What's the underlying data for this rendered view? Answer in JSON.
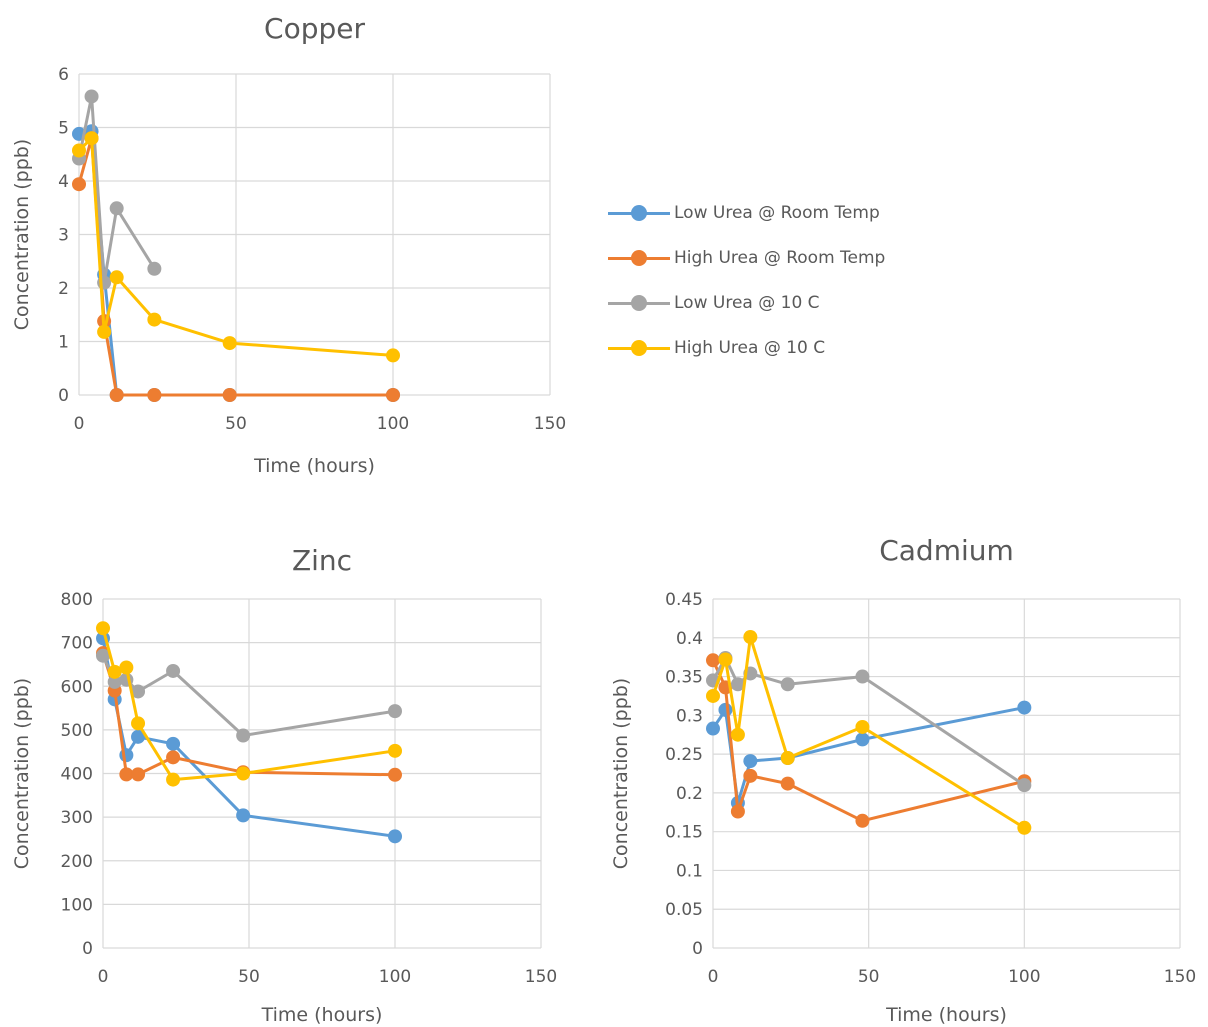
{
  "legend": {
    "series": [
      {
        "name": "Low Urea @ Room Temp",
        "color": "#5B9BD5"
      },
      {
        "name": "High Urea @ Room Temp",
        "color": "#ED7D31"
      },
      {
        "name": "Low Urea @ 10 C",
        "color": "#A5A5A5"
      },
      {
        "name": "High Urea @ 10 C",
        "color": "#FFC000"
      }
    ]
  },
  "chart_data": [
    {
      "type": "line",
      "title": "Copper",
      "xlabel": "Time (hours)",
      "ylabel": "Concentration (ppb)",
      "xlim": [
        0,
        150
      ],
      "ylim": [
        0,
        6
      ],
      "xticks": [
        0,
        50,
        100,
        150
      ],
      "yticks": [
        0,
        1,
        2,
        3,
        4,
        5,
        6
      ],
      "grid": true,
      "legend": "right",
      "series": [
        {
          "name": "Low Urea @ Room Temp",
          "color": "#5B9BD5",
          "x": [
            0,
            4,
            8,
            12,
            24,
            48,
            100
          ],
          "y": [
            4.88,
            4.93,
            2.25,
            0,
            0,
            0,
            0
          ]
        },
        {
          "name": "High Urea @ Room Temp",
          "color": "#ED7D31",
          "x": [
            0,
            4,
            8,
            12,
            24,
            48,
            100
          ],
          "y": [
            3.94,
            4.8,
            1.38,
            0,
            0,
            0,
            0
          ]
        },
        {
          "name": "Low Urea @ 10 C",
          "color": "#A5A5A5",
          "x": [
            0,
            4,
            8,
            12,
            24
          ],
          "y": [
            4.42,
            5.58,
            2.1,
            3.49,
            2.36
          ]
        },
        {
          "name": "High Urea @ 10 C",
          "color": "#FFC000",
          "x": [
            0,
            4,
            8,
            12,
            24,
            48,
            100
          ],
          "y": [
            4.57,
            4.8,
            1.18,
            2.2,
            1.41,
            0.97,
            0.74
          ]
        }
      ]
    },
    {
      "type": "line",
      "title": "Zinc",
      "xlabel": "Time (hours)",
      "ylabel": "Concentration (ppb)",
      "xlim": [
        0,
        150
      ],
      "ylim": [
        0,
        800
      ],
      "xticks": [
        0,
        50,
        100,
        150
      ],
      "yticks": [
        0,
        100,
        200,
        300,
        400,
        500,
        600,
        700,
        800
      ],
      "grid": true,
      "series": [
        {
          "name": "Low Urea @ Room Temp",
          "color": "#5B9BD5",
          "x": [
            0,
            4,
            8,
            12,
            24,
            48,
            100
          ],
          "y": [
            710,
            570,
            442,
            484,
            468,
            304,
            256
          ]
        },
        {
          "name": "High Urea @ Room Temp",
          "color": "#ED7D31",
          "x": [
            0,
            4,
            8,
            12,
            24,
            48,
            100
          ],
          "y": [
            676,
            590,
            398,
            398,
            437,
            403,
            397
          ]
        },
        {
          "name": "Low Urea @ 10 C",
          "color": "#A5A5A5",
          "x": [
            0,
            4,
            8,
            12,
            24,
            48,
            100
          ],
          "y": [
            670,
            610,
            615,
            588,
            635,
            487,
            543
          ]
        },
        {
          "name": "High Urea @ 10 C",
          "color": "#FFC000",
          "x": [
            0,
            4,
            8,
            12,
            24,
            48,
            100
          ],
          "y": [
            733,
            633,
            643,
            515,
            386,
            400,
            452
          ]
        }
      ]
    },
    {
      "type": "line",
      "title": "Cadmium",
      "xlabel": "Time (hours)",
      "ylabel": "Concentration (ppb)",
      "xlim": [
        0,
        150
      ],
      "ylim": [
        0,
        0.45
      ],
      "xticks": [
        0,
        50,
        100,
        150
      ],
      "yticks": [
        "0",
        "0.05",
        "0.1",
        "0.15",
        "0.2",
        "0.25",
        "0.3",
        "0.35",
        "0.4",
        "0.45"
      ],
      "grid": true,
      "series": [
        {
          "name": "Low Urea @ Room Temp",
          "color": "#5B9BD5",
          "x": [
            0,
            4,
            8,
            12,
            24,
            48,
            100
          ],
          "y": [
            0.283,
            0.307,
            0.187,
            0.241,
            0.245,
            0.269,
            0.31
          ]
        },
        {
          "name": "High Urea @ Room Temp",
          "color": "#ED7D31",
          "x": [
            0,
            4,
            8,
            12,
            24,
            48,
            100
          ],
          "y": [
            0.371,
            0.336,
            0.176,
            0.222,
            0.212,
            0.164,
            0.215
          ]
        },
        {
          "name": "Low Urea @ 10 C",
          "color": "#A5A5A5",
          "x": [
            0,
            4,
            8,
            12,
            24,
            48,
            100
          ],
          "y": [
            0.345,
            0.374,
            0.34,
            0.354,
            0.34,
            0.35,
            0.21
          ]
        },
        {
          "name": "High Urea @ 10 C",
          "color": "#FFC000",
          "x": [
            0,
            4,
            8,
            12,
            24,
            48,
            100
          ],
          "y": [
            0.325,
            0.372,
            0.275,
            0.401,
            0.245,
            0.285,
            0.155
          ]
        }
      ]
    }
  ]
}
